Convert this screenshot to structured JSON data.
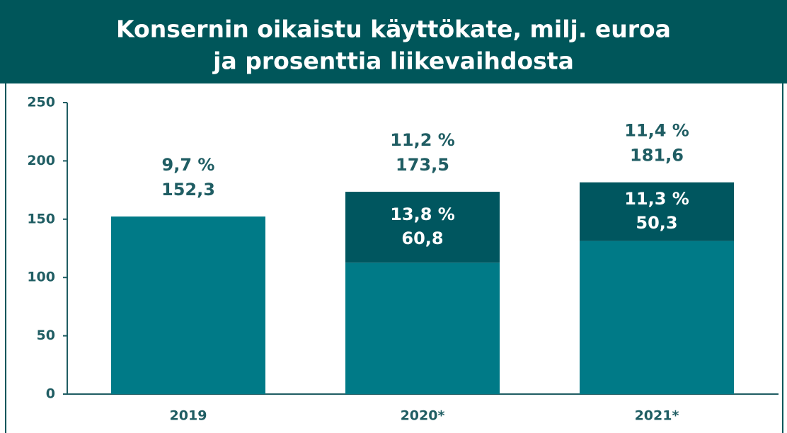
{
  "chart_data": {
    "type": "stacked_bar",
    "title": [
      "Konsernin oikaistu käyttökate, milj. euroa",
      "ja prosenttia liikevaihdosta"
    ],
    "categories": [
      "2019",
      "2020*",
      "2021*"
    ],
    "series": [
      {
        "color": "#007a87",
        "values": [
          152.3,
          112.7,
          131.3
        ]
      },
      {
        "color": "#00565f",
        "values": [
          null,
          60.8,
          50.3
        ],
        "value_labels": [
          null,
          "60,8",
          "50,3"
        ],
        "percent_labels": [
          null,
          "13,8 %",
          "11,3 %"
        ]
      }
    ],
    "total_labels": [
      "152,3",
      "173,5",
      "181,6"
    ],
    "total_percent_labels": [
      "9,7 %",
      "11,2 %",
      "11,4 %"
    ],
    "ylim": [
      0,
      250
    ],
    "yticks": [
      0,
      50,
      100,
      150,
      200,
      250
    ]
  }
}
